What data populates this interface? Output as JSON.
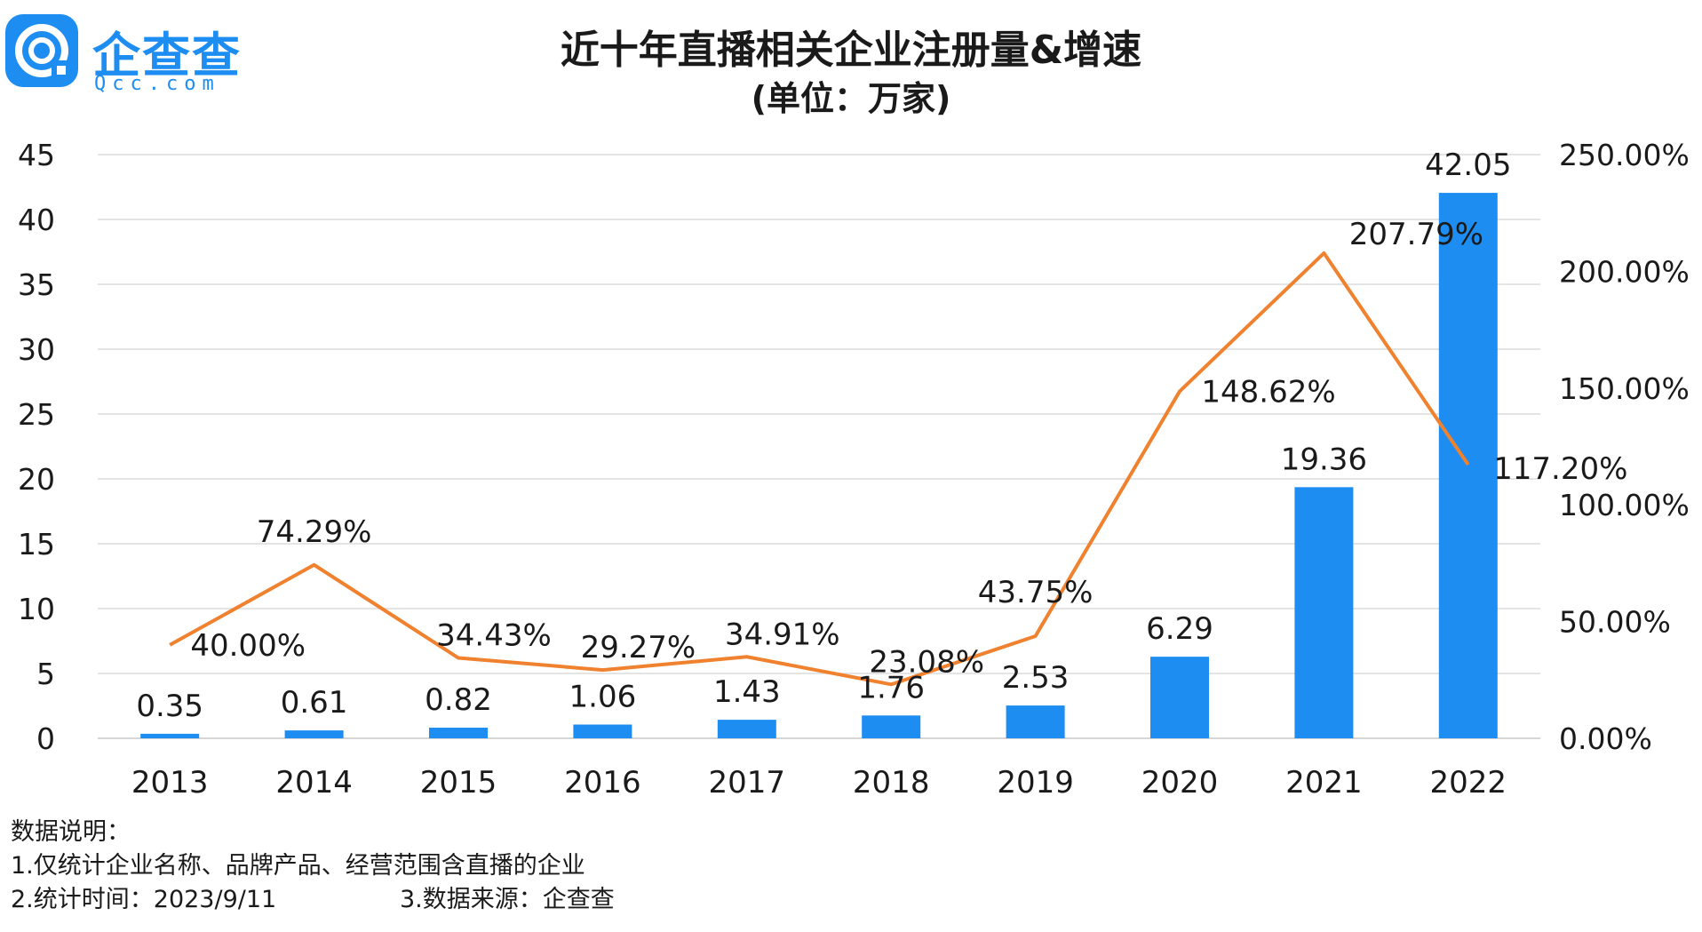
{
  "brand": {
    "name": "企查查",
    "domain": "Qcc.com",
    "color": "#1d8df2"
  },
  "chart_data": {
    "type": "bar",
    "title": "近十年直播相关企业注册量&增速",
    "subtitle": "(单位：万家)",
    "categories": [
      "2013",
      "2014",
      "2015",
      "2016",
      "2017",
      "2018",
      "2019",
      "2020",
      "2021",
      "2022"
    ],
    "series": [
      {
        "type": "bar",
        "axis": "left",
        "color": "#1d8df2",
        "values": [
          0.35,
          0.61,
          0.82,
          1.06,
          1.43,
          1.76,
          2.53,
          6.29,
          19.36,
          42.05
        ],
        "labels": [
          "0.35",
          "0.61",
          "0.82",
          "1.06",
          "1.43",
          "1.76",
          "2.53",
          "6.29",
          "19.36",
          "42.05"
        ]
      },
      {
        "type": "line",
        "axis": "right",
        "color": "#f0812e",
        "values": [
          40.0,
          74.29,
          34.43,
          29.27,
          34.91,
          23.08,
          43.75,
          148.62,
          207.79,
          117.2
        ],
        "labels": [
          "40.00%",
          "74.29%",
          "34.43%",
          "29.27%",
          "34.91%",
          "23.08%",
          "43.75%",
          "148.62%",
          "207.79%",
          "117.20%"
        ]
      }
    ],
    "y_left": {
      "min": 0,
      "max": 45,
      "ticks": [
        "0",
        "5",
        "10",
        "15",
        "20",
        "25",
        "30",
        "35",
        "40",
        "45"
      ]
    },
    "y_right": {
      "min": 0,
      "max": 250,
      "ticks": [
        "0.00%",
        "50.00%",
        "100.00%",
        "150.00%",
        "200.00%",
        "250.00%"
      ]
    },
    "grid": true,
    "legend": "none"
  },
  "notes": {
    "heading": "数据说明：",
    "line1": "1.仅统计企业名称、品牌产品、经营范围含直播的企业",
    "line2a": "2.统计时间：2023/9/11",
    "line2b": "3.数据来源：企查查"
  }
}
